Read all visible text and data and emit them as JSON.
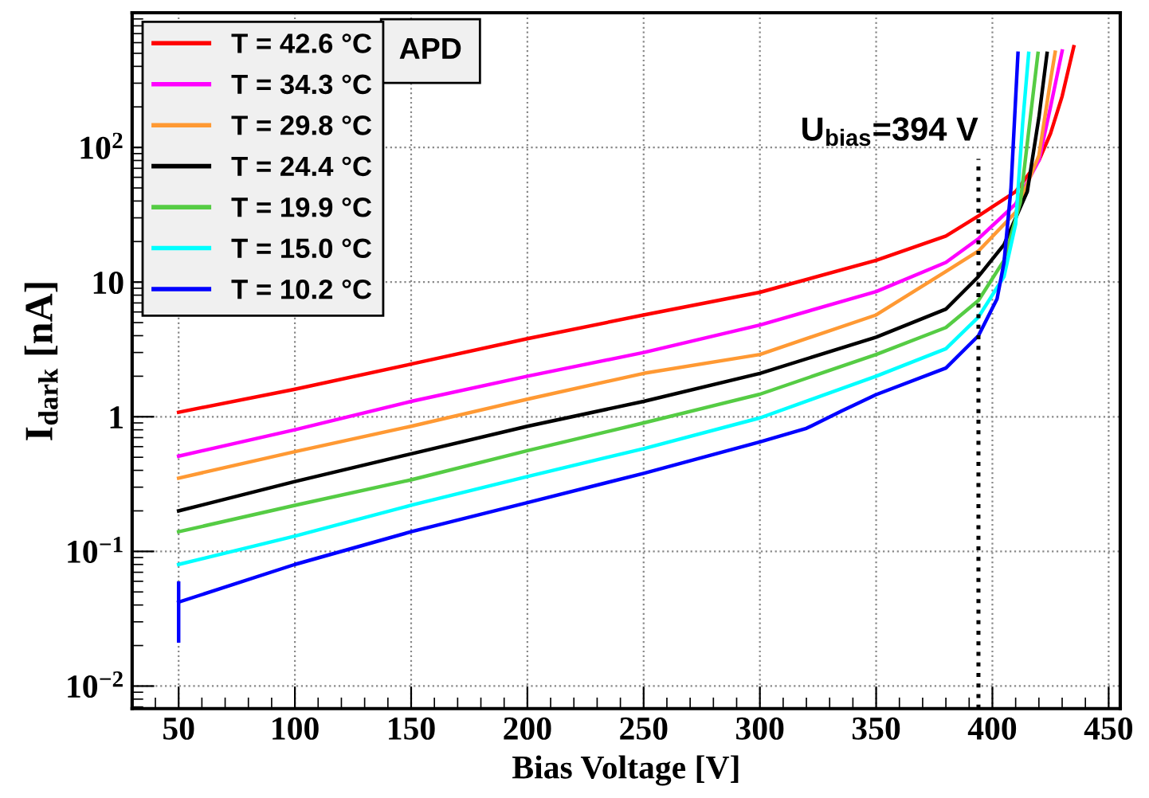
{
  "chart_data": {
    "type": "line",
    "title": "APD",
    "xlabel": "Bias Voltage [V]",
    "ylabel": "I$_{dark}$ [nA]",
    "log": "y",
    "grid": true,
    "legend": "top left",
    "marker": "none",
    "line_style": "solid",
    "xlim": [
      30,
      455
    ],
    "xticks": [
      50,
      100,
      150,
      200,
      250,
      300,
      350,
      400,
      450
    ],
    "ylim": [
      0.0068,
      1000
    ],
    "yticks": [
      {
        "value": 0.01,
        "label": "10$^{−2}$"
      },
      {
        "value": 0.1,
        "label": "10$^{−1}$"
      },
      1,
      10,
      {
        "value": 100,
        "label": "10$^{2}$"
      }
    ],
    "ref_lines": [
      {
        "axis": "x",
        "value": 394,
        "label": "U$_{bias}$=394 V",
        "color": "#000000",
        "line_style": "dotted"
      }
    ],
    "series": [
      {
        "name": "T = 42.6 °C",
        "color": "#ff0000",
        "x": [
          50,
          100,
          150,
          200,
          250,
          300,
          350,
          380,
          394,
          410,
          420,
          425,
          430,
          435
        ],
        "values": [
          1.08,
          1.6,
          2.46,
          3.8,
          5.7,
          8.4,
          14.5,
          22,
          31,
          47,
          80,
          127,
          240,
          560
        ]
      },
      {
        "name": "T = 34.3 °C",
        "color": "#ff00ff",
        "x": [
          50,
          100,
          150,
          200,
          250,
          300,
          350,
          380,
          394,
          410,
          420,
          425,
          430
        ],
        "values": [
          0.51,
          0.8,
          1.3,
          2.0,
          3.0,
          4.8,
          8.5,
          14,
          21,
          38,
          80,
          200,
          520
        ]
      },
      {
        "name": "T = 29.8 °C",
        "color": "#ff9933",
        "x": [
          50,
          100,
          150,
          200,
          250,
          300,
          350,
          380,
          394,
          410,
          420,
          425,
          427
        ],
        "values": [
          0.35,
          0.55,
          0.85,
          1.35,
          2.1,
          2.9,
          5.7,
          12,
          17,
          33,
          87,
          315,
          510
        ]
      },
      {
        "name": "T = 24.4 °C",
        "color": "#000000",
        "x": [
          50,
          100,
          150,
          200,
          250,
          300,
          350,
          380,
          394,
          405,
          415,
          420,
          423.5
        ],
        "values": [
          0.2,
          0.33,
          0.53,
          0.85,
          1.3,
          2.1,
          3.9,
          6.3,
          11,
          19,
          47,
          167,
          500
        ]
      },
      {
        "name": "T = 19.9 °C",
        "color": "#55cc44",
        "x": [
          50,
          100,
          150,
          200,
          250,
          300,
          350,
          380,
          394,
          405,
          412,
          416,
          419.6
        ],
        "values": [
          0.14,
          0.22,
          0.34,
          0.56,
          0.9,
          1.47,
          2.9,
          4.6,
          7.3,
          14.5,
          39,
          150,
          500
        ]
      },
      {
        "name": "T = 15.0 °C",
        "color": "#00ffff",
        "x": [
          50,
          100,
          150,
          200,
          250,
          300,
          350,
          380,
          394,
          405,
          410,
          413,
          415.6
        ],
        "values": [
          0.08,
          0.13,
          0.22,
          0.36,
          0.58,
          0.98,
          2.0,
          3.2,
          5.5,
          11,
          27,
          150,
          500
        ]
      },
      {
        "name": "T = 10.2 °C",
        "color": "#0000ff",
        "x": [
          50,
          100,
          150,
          200,
          250,
          300,
          320,
          335,
          350,
          380,
          394,
          402,
          405,
          408,
          411
        ],
        "values": [
          0.042,
          0.08,
          0.14,
          0.23,
          0.38,
          0.65,
          0.82,
          1.1,
          1.46,
          2.3,
          4.0,
          7.5,
          14,
          50,
          500
        ],
        "errors": [
          [
            0.021,
            0.06
          ],
          null,
          null,
          null,
          null,
          null,
          null,
          null,
          null,
          null,
          null,
          null,
          null,
          null,
          null
        ]
      }
    ]
  }
}
